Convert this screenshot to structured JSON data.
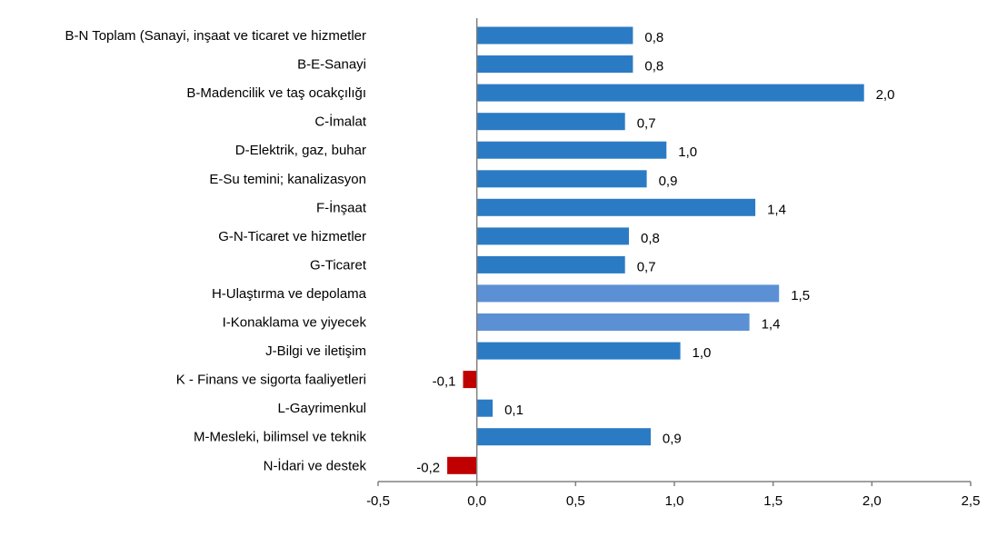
{
  "chart_data": {
    "type": "bar",
    "orientation": "horizontal",
    "title": "",
    "xlabel": "",
    "ylabel": "",
    "xlim": [
      -0.5,
      2.5
    ],
    "grid": false,
    "categories": [
      "B-N Toplam (Sanayi, inşaat ve ticaret ve hizmetler",
      "B-E-Sanayi",
      "B-Madencilik ve taş ocakçılığı",
      "C-İmalat",
      "D-Elektrik, gaz, buhar",
      "E-Su temini; kanalizasyon",
      "F-İnşaat",
      "G-N-Ticaret ve hizmetler",
      "G-Ticaret",
      "H-Ulaştırma ve depolama",
      "I-Konaklama ve yiyecek",
      "J-Bilgi ve iletişim",
      "K - Finans ve sigorta faaliyetleri",
      "L-Gayrimenkul",
      "M-Mesleki, bilimsel ve teknik",
      "N-İdari ve destek"
    ],
    "values": [
      0.79,
      0.79,
      1.96,
      0.75,
      0.96,
      0.86,
      1.41,
      0.77,
      0.75,
      1.53,
      1.38,
      1.03,
      -0.07,
      0.08,
      0.88,
      -0.15
    ],
    "value_labels": [
      "0,8",
      "0,8",
      "2,0",
      "0,7",
      "1,0",
      "0,9",
      "1,4",
      "0,8",
      "0,7",
      "1,5",
      "1,4",
      "1,0",
      "-0,1",
      "0,1",
      "0,9",
      "-0,2"
    ],
    "bar_colors": [
      "#2b7bc4",
      "#2b7bc4",
      "#2b7bc4",
      "#2b7bc4",
      "#2b7bc4",
      "#2b7bc4",
      "#2b7bc4",
      "#2b7bc4",
      "#2b7bc4",
      "#5b90d4",
      "#5b90d4",
      "#2b7bc4",
      "#c00000",
      "#2b7bc4",
      "#2b7bc4",
      "#c00000"
    ],
    "x_ticks": [
      -0.5,
      0,
      0.5,
      1,
      1.5,
      2,
      2.5
    ],
    "x_tick_labels": [
      "-0,5",
      "0,0",
      "0,5",
      "1,0",
      "1,5",
      "2,0",
      "2,5"
    ],
    "axis_color": "#808080"
  }
}
